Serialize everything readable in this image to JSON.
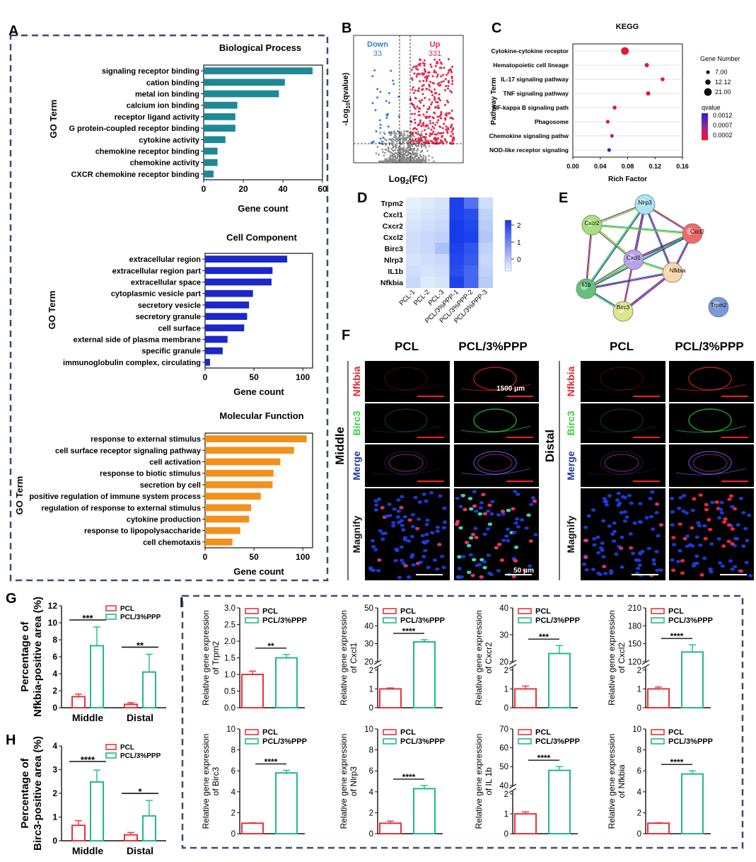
{
  "panel_letters": {
    "a": "A",
    "b": "B",
    "c": "C",
    "d": "D",
    "e": "E",
    "f": "F",
    "g": "G",
    "h": "H",
    "i": "I"
  },
  "colors": {
    "bp": "#1f8896",
    "cc": "#1c27c8",
    "mf": "#f2901c",
    "pcl": "#e8333a",
    "ppp": "#20b88a",
    "frame": "#3d4b6b",
    "up": "#e3264a",
    "down": "#3a7bd5"
  },
  "chart_data": [
    {
      "id": "bp",
      "type": "bar",
      "orientation": "horizontal",
      "title": "Biological Process",
      "ylabel": "GO Term",
      "xlabel": "Gene count",
      "categories": [
        "signaling receptor binding",
        "cation binding",
        "metal ion binding",
        "calcium ion binding",
        "receptor ligand activity",
        "G protein-coupled receptor binding",
        "cytokine activity",
        "chemokine receptor binding",
        "chemokine activity",
        "CXCR chemokine receptor binding"
      ],
      "values": [
        55,
        41,
        38,
        17,
        16,
        16,
        11,
        7,
        7,
        5
      ],
      "xlim": [
        0,
        60
      ],
      "xticks": [
        0,
        20,
        40,
        60
      ],
      "xtick_labels": [
        "0",
        "20",
        "40",
        "60"
      ]
    },
    {
      "id": "cc",
      "type": "bar",
      "orientation": "horizontal",
      "title": "Cell Component",
      "ylabel": "GO Term",
      "xlabel": "Gene count",
      "categories": [
        "extracellular region",
        "extracellular region part",
        "extracellular space",
        "cytoplasmic vesicle part",
        "secretory vesicle",
        "secretory granule",
        "cell surface",
        "external side of plasma membrane",
        "specific granule",
        "immunoglobulin complex, circulating"
      ],
      "values": [
        84,
        69,
        68,
        49,
        45,
        43,
        40,
        23,
        18,
        5
      ],
      "xlim": [
        0,
        110
      ],
      "xticks": [
        0,
        50,
        100
      ],
      "xtick_labels": [
        "0",
        "50",
        "100"
      ]
    },
    {
      "id": "mf",
      "type": "bar",
      "orientation": "horizontal",
      "title": "Molecular Function",
      "ylabel": "GO Term",
      "xlabel": "Gene count",
      "categories": [
        "response to external stimulus",
        "cell surface receptor signaling pathway",
        "cell activation",
        "response to biotic stimulus",
        "secretion by cell",
        "positive regulation of immune system process",
        "regulation of response to external stimulus",
        "cytokine production",
        "response to lipopolysaccharide",
        "cell chemotaxis"
      ],
      "values": [
        104,
        91,
        77,
        70,
        69,
        57,
        47,
        45,
        36,
        28
      ],
      "xlim": [
        0,
        110
      ],
      "xticks": [
        0,
        50,
        100
      ],
      "xtick_labels": [
        "0",
        "50",
        "100"
      ]
    },
    {
      "id": "volcano",
      "type": "scatter",
      "title": "",
      "xlabel": "Log2(FC)",
      "ylabel": "-Log10(qvalue)",
      "down_label": "Down",
      "down_count": "33",
      "up_label": "Up",
      "up_count": "331",
      "xlim": [
        -6,
        6
      ],
      "ylim": [
        0,
        12
      ],
      "fc_cut": [
        -1,
        1
      ],
      "q_cut": 1.3
    },
    {
      "id": "kegg",
      "type": "scatter",
      "title": "KEGG",
      "xlabel": "Rich Factor",
      "ylabel": "Pathway Term",
      "categories": [
        "Cytokine-cytokine receptor",
        "Hematopoietic cell lineage",
        "IL-17 signaling pathway",
        "TNF signaling pathway",
        "NF-kappa B signaling path",
        "Phagosome",
        "Chemokine signaling pathw",
        "NOD-like receptor signaling"
      ],
      "rich_factor": [
        0.076,
        0.108,
        0.131,
        0.11,
        0.061,
        0.051,
        0.057,
        0.053
      ],
      "gene_number": [
        21,
        9,
        8,
        9,
        8,
        7,
        7,
        7
      ],
      "qvalue": [
        0.0002,
        0.0002,
        0.0002,
        0.0002,
        0.0002,
        0.0002,
        0.0004,
        0.0012
      ],
      "xlim": [
        0,
        0.16
      ],
      "xticks": [
        0,
        0.04,
        0.08,
        0.12,
        0.16
      ],
      "xtick_labels": [
        "0.00",
        "0.04",
        "0.08",
        "0.12",
        "0.16"
      ],
      "size_legend_title": "Gene Number",
      "size_legend": [
        "7.00",
        "12.12",
        "21.00"
      ],
      "color_legend_title": "qvalue",
      "color_legend": [
        "0.0012",
        "0.0007",
        "0.0002"
      ]
    },
    {
      "id": "heatmap",
      "type": "heatmap",
      "rows": [
        "Trpm2",
        "Cxcl1",
        "Cxcr2",
        "Cxcl2",
        "Birc3",
        "Nlrp3",
        "IL1b",
        "Nfkbia"
      ],
      "columns": [
        "PCL-1",
        "PCL-2",
        "PCL-3",
        "PCL/3%PPP-1",
        "PCL/3%PPP-2",
        "PCL/3%PPP-3"
      ],
      "values": [
        [
          -0.7,
          -0.6,
          -0.5,
          2.2,
          1.4,
          -0.4
        ],
        [
          -0.6,
          -0.5,
          -0.4,
          2.2,
          2.0,
          -0.2
        ],
        [
          -0.5,
          -0.4,
          -0.3,
          2.3,
          2.1,
          -0.1
        ],
        [
          -0.4,
          -0.3,
          -0.2,
          2.3,
          2.2,
          0.0
        ],
        [
          -0.4,
          -0.3,
          0.1,
          2.2,
          1.9,
          -0.2
        ],
        [
          -0.5,
          -0.4,
          -0.3,
          2.1,
          1.8,
          -0.3
        ],
        [
          -0.4,
          -0.5,
          -0.4,
          2.0,
          1.6,
          -0.2
        ],
        [
          -0.3,
          -0.6,
          -0.5,
          2.2,
          1.6,
          -0.1
        ]
      ],
      "colorbar_ticks": [
        "2",
        "1",
        "0"
      ]
    },
    {
      "id": "g",
      "type": "bar",
      "ylabel_line1": "Percentage of",
      "ylabel_line2": "Nfkbia-positive area (%)",
      "categories": [
        "Middle",
        "Distal"
      ],
      "series": [
        {
          "name": "PCL",
          "values": [
            1.3,
            0.4
          ],
          "errors": [
            0.3,
            0.2
          ]
        },
        {
          "name": "PCL/3%PPP",
          "values": [
            7.3,
            4.2
          ],
          "errors": [
            2.2,
            2.1
          ]
        }
      ],
      "ylim": [
        0,
        12
      ],
      "yticks": [
        "0",
        "2",
        "4",
        "6",
        "8",
        "10",
        "12"
      ],
      "significance": [
        "***",
        "**"
      ]
    },
    {
      "id": "h",
      "type": "bar",
      "ylabel_line1": "Percentage of",
      "ylabel_line2": "Birc3-positive area (%)",
      "categories": [
        "Middle",
        "Distal"
      ],
      "series": [
        {
          "name": "PCL",
          "values": [
            0.65,
            0.25
          ],
          "errors": [
            0.2,
            0.1
          ]
        },
        {
          "name": "PCL/3%PPP",
          "values": [
            2.48,
            1.05
          ],
          "errors": [
            0.5,
            0.65
          ]
        }
      ],
      "ylim": [
        0,
        4
      ],
      "yticks": [
        "0",
        "1",
        "2",
        "3",
        "4"
      ],
      "significance": [
        "****",
        "*"
      ]
    },
    {
      "id": "trpm2",
      "type": "bar",
      "gene": "Trpm2",
      "ylabel_line1": "Relative gene expression",
      "ylabel_line2": "of Trpm2",
      "categories": [
        "PCL",
        "PCL/3%PPP"
      ],
      "values": [
        1.0,
        1.5
      ],
      "errors": [
        0.1,
        0.1
      ],
      "significance": "**",
      "yticks": [
        "0.0",
        "0.5",
        "1.0",
        "1.5",
        "2.0",
        "2.5",
        "3.0"
      ]
    },
    {
      "id": "cxcl1",
      "type": "bar",
      "gene": "Cxcl1",
      "ylabel_line1": "Relative gene expression",
      "ylabel_line2": "of Cxcl1",
      "categories": [
        "PCL",
        "PCL/3%PPP"
      ],
      "values": [
        1.0,
        31
      ],
      "errors": [
        0.05,
        1.2
      ],
      "significance": "****",
      "yticks_lower": [
        "0",
        "1",
        "2"
      ],
      "yticks_upper": [
        "20",
        "30",
        "40",
        "50"
      ]
    },
    {
      "id": "cxcr2",
      "type": "bar",
      "gene": "Cxcr2",
      "ylabel_line1": "Relative gene expression",
      "ylabel_line2": "of Cxcr2",
      "categories": [
        "PCL",
        "PCL/3%PPP"
      ],
      "values": [
        1.0,
        23
      ],
      "errors": [
        0.15,
        3
      ],
      "significance": "***",
      "yticks_lower": [
        "0",
        "1",
        "2"
      ],
      "yticks_upper": [
        "20",
        "30",
        "40"
      ]
    },
    {
      "id": "cxcl2",
      "type": "bar",
      "gene": "Cxcl2",
      "ylabel_line1": "Relative gene expression",
      "ylabel_line2": "of Cxcl2",
      "categories": [
        "PCL",
        "PCL/3%PPP"
      ],
      "values": [
        1.0,
        136
      ],
      "errors": [
        0.1,
        12
      ],
      "significance": "****",
      "yticks_lower": [
        "0",
        "1",
        "2"
      ],
      "yticks_upper": [
        "120",
        "150",
        "180",
        "210"
      ]
    },
    {
      "id": "birc3",
      "type": "bar",
      "gene": "Birc3",
      "ylabel_line1": "Relative gene expression",
      "ylabel_line2": "of Birc3",
      "categories": [
        "PCL",
        "PCL/3%PPP"
      ],
      "values": [
        1.0,
        5.8
      ],
      "errors": [
        0.05,
        0.25
      ],
      "significance": "****",
      "yticks": [
        "0",
        "2",
        "4",
        "6",
        "8",
        "10"
      ]
    },
    {
      "id": "nlrp3",
      "type": "bar",
      "gene": "Nlrp3",
      "ylabel_line1": "Relative gene expression",
      "ylabel_line2": "of Nlrp3",
      "categories": [
        "PCL",
        "PCL/3%PPP"
      ],
      "values": [
        1.0,
        4.3
      ],
      "errors": [
        0.2,
        0.3
      ],
      "significance": "****",
      "yticks": [
        "0",
        "2",
        "4",
        "6",
        "8",
        "10"
      ]
    },
    {
      "id": "il1b",
      "type": "bar",
      "gene": "IL 1b",
      "ylabel_line1": "Relative gene expression",
      "ylabel_line2": "of IL 1b",
      "categories": [
        "PCL",
        "PCL/3%PPP"
      ],
      "values": [
        1.0,
        48
      ],
      "errors": [
        0.1,
        2
      ],
      "significance": "****",
      "yticks_lower": [
        "0",
        "1",
        "2"
      ],
      "yticks_upper": [
        "40",
        "50",
        "60",
        "70"
      ]
    },
    {
      "id": "nfkbia",
      "type": "bar",
      "gene": "Nfkbia",
      "ylabel_line1": "Relative gene expression",
      "ylabel_line2": "of Nfkbia",
      "categories": [
        "PCL",
        "PCL/3%PPP"
      ],
      "values": [
        1.0,
        5.7
      ],
      "errors": [
        0.05,
        0.3
      ],
      "significance": "****",
      "yticks": [
        "0",
        "2",
        "4",
        "6",
        "8",
        "10"
      ]
    }
  ],
  "panel_e": {
    "nodes": [
      "Nlrp3",
      "Cxcr2",
      "Cxcl2",
      "Cxcl1",
      "Nfkbia",
      "Il1b",
      "Birc3",
      "Trpm2"
    ]
  },
  "panel_f": {
    "col_pcl": "PCL",
    "col_ppp": "PCL/3%PPP",
    "region_middle": "Middle",
    "region_distal": "Distal",
    "rows": [
      "Nfkbia",
      "Birc3",
      "Merge",
      "Magnify"
    ],
    "scale_large": "1500 μm",
    "scale_small": "50 μm"
  },
  "legend": {
    "pcl": "PCL",
    "ppp": "PCL/3%PPP"
  }
}
